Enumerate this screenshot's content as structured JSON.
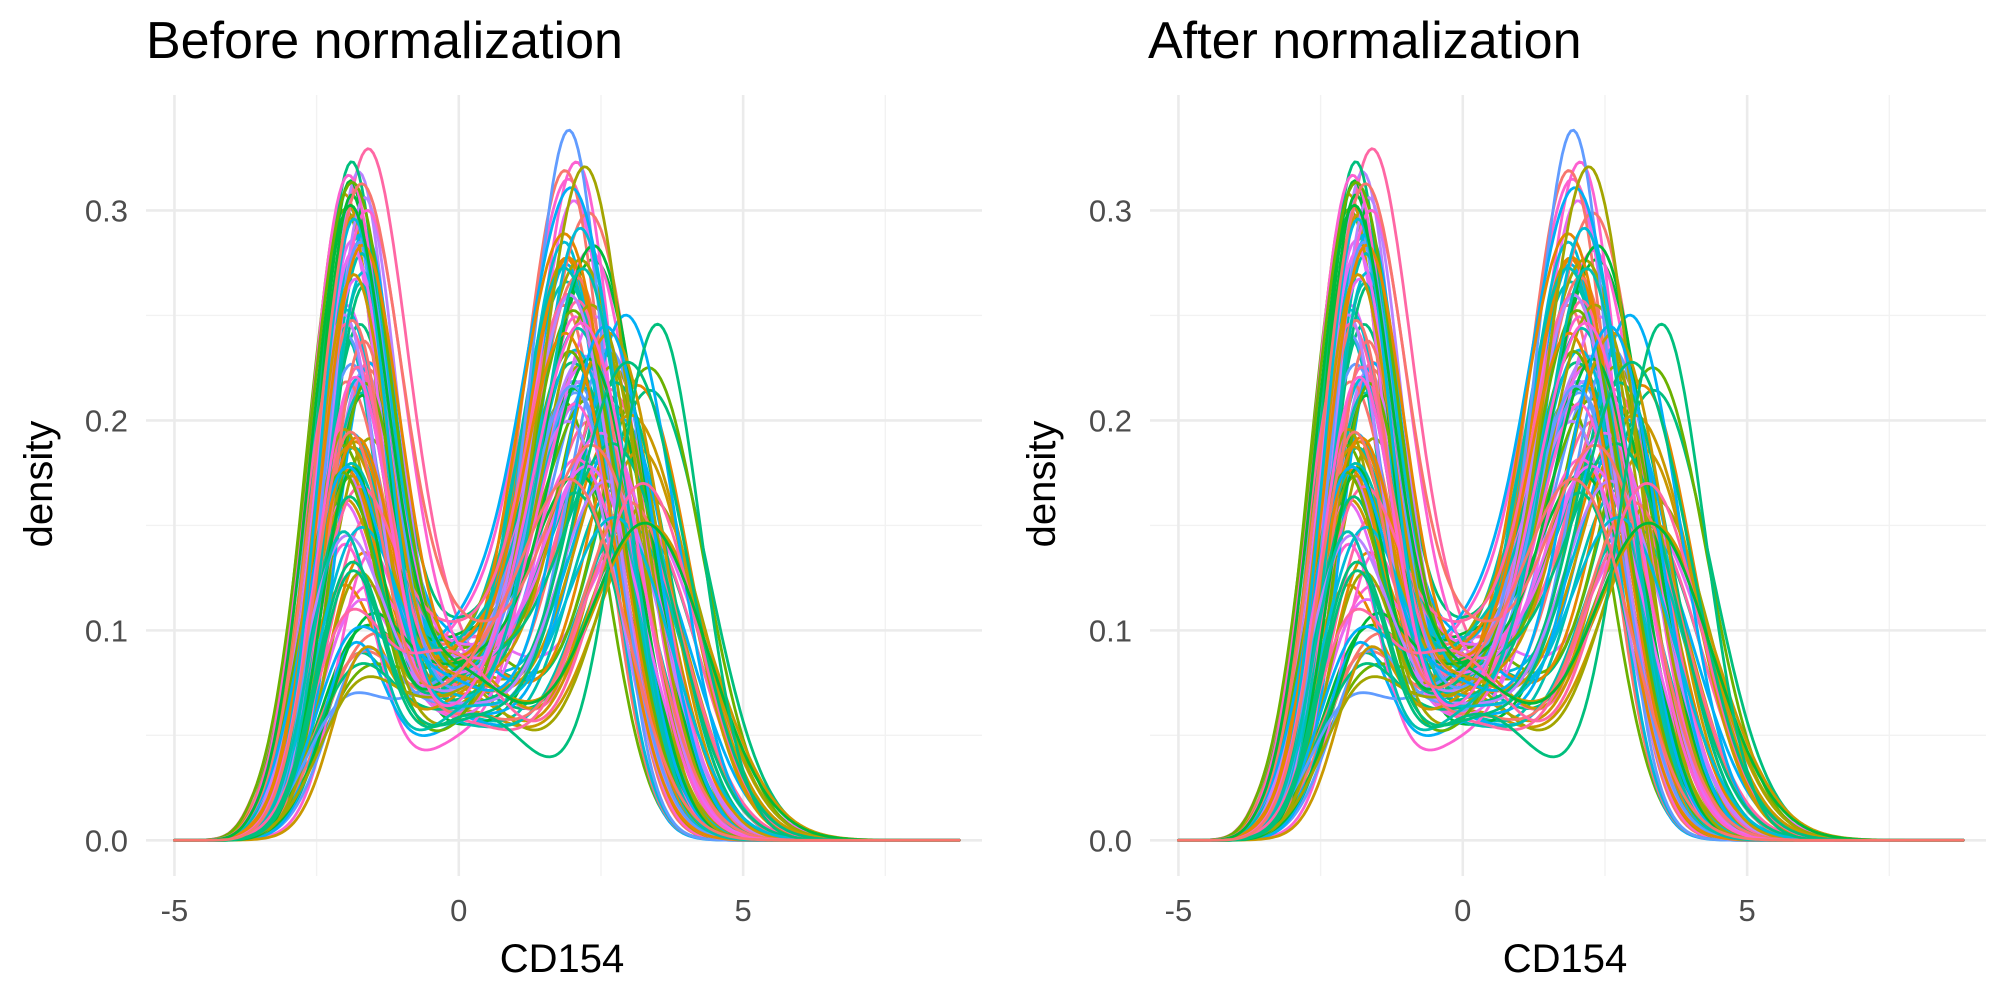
{
  "chart_data": [
    {
      "type": "line",
      "title": "Before normalization",
      "xlabel": "CD154",
      "ylabel": "density",
      "xlim": [
        -5.5,
        9.2
      ],
      "ylim": [
        -0.017,
        0.355
      ],
      "x_ticks": [
        -5,
        0,
        5
      ],
      "x_tick_labels": [
        "-5",
        "0",
        "5"
      ],
      "x_minor_ticks": [
        -2.5,
        2.5,
        7.5
      ],
      "y_ticks": [
        0.0,
        0.1,
        0.2,
        0.3
      ],
      "y_tick_labels": [
        "0.0",
        "0.1",
        "0.2",
        "0.3"
      ],
      "y_minor_ticks": [
        0.05,
        0.15,
        0.25
      ],
      "grid": true,
      "legend": "none",
      "x_range_of_curves": [
        -5,
        8.8
      ],
      "series_count": 96,
      "palette": [
        "#F8766D",
        "#E58700",
        "#C99800",
        "#A3A500",
        "#6BB100",
        "#00BA38",
        "#00BF7D",
        "#00C0AF",
        "#00BCD8",
        "#00B0F6",
        "#619CFF",
        "#B983FF",
        "#E76BF3",
        "#FD61D1",
        "#FF67A4"
      ],
      "series_description": "bimodal density curves; left mode near x=-2 (peak 0.05-0.31), trough near x=0 (0.05-0.13), right mode near x=1.9-3.6 (peak 0.15-0.34)"
    },
    {
      "type": "line",
      "title": "After normalization",
      "xlabel": "CD154",
      "ylabel": "density",
      "xlim": [
        -5.5,
        9.2
      ],
      "ylim": [
        -0.017,
        0.355
      ],
      "x_ticks": [
        -5,
        0,
        5
      ],
      "x_tick_labels": [
        "-5",
        "0",
        "5"
      ],
      "x_minor_ticks": [
        -2.5,
        2.5,
        7.5
      ],
      "y_ticks": [
        0.0,
        0.1,
        0.2,
        0.3
      ],
      "y_tick_labels": [
        "0.0",
        "0.1",
        "0.2",
        "0.3"
      ],
      "y_minor_ticks": [
        0.05,
        0.15,
        0.25
      ],
      "grid": true,
      "legend": "none",
      "x_range_of_curves": [
        -5,
        8.8
      ],
      "series_count": 96,
      "palette": [
        "#F8766D",
        "#E58700",
        "#C99800",
        "#A3A500",
        "#6BB100",
        "#00BA38",
        "#00BF7D",
        "#00C0AF",
        "#00BCD8",
        "#00B0F6",
        "#619CFF",
        "#B983FF",
        "#E76BF3",
        "#FD61D1",
        "#FF67A4"
      ],
      "series_description": "bimodal density curves; left mode near x=-2 (peak 0.05-0.31), trough near x=0 (0.05-0.13), right mode near x=1.9-3.6 (peak 0.15-0.34)"
    }
  ]
}
